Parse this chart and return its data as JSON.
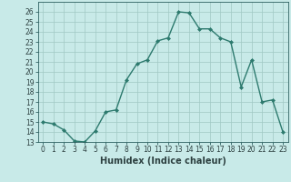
{
  "xlabel": "Humidex (Indice chaleur)",
  "ylabel": "",
  "x": [
    0,
    1,
    2,
    3,
    4,
    5,
    6,
    7,
    8,
    9,
    10,
    11,
    12,
    13,
    14,
    15,
    16,
    17,
    18,
    19,
    20,
    21,
    22,
    23
  ],
  "y": [
    15,
    14.8,
    14.2,
    13.1,
    13.0,
    14.1,
    16.0,
    16.2,
    19.2,
    20.8,
    21.2,
    23.1,
    23.4,
    26.0,
    25.9,
    24.3,
    24.3,
    23.4,
    23.0,
    18.5,
    21.2,
    17.0,
    17.2,
    14.0
  ],
  "line_color": "#2d7a6e",
  "bg_color": "#c8eae8",
  "grid_color": "#a0c8c4",
  "ylim": [
    13,
    27
  ],
  "xlim": [
    -0.5,
    23.5
  ],
  "yticks": [
    13,
    14,
    15,
    16,
    17,
    18,
    19,
    20,
    21,
    22,
    23,
    24,
    25,
    26
  ],
  "xticks": [
    0,
    1,
    2,
    3,
    4,
    5,
    6,
    7,
    8,
    9,
    10,
    11,
    12,
    13,
    14,
    15,
    16,
    17,
    18,
    19,
    20,
    21,
    22,
    23
  ],
  "marker": "D",
  "markersize": 2.0,
  "linewidth": 1.0,
  "tick_fontsize": 5.5,
  "xlabel_fontsize": 7.0,
  "tick_color": "#2d6060",
  "label_color": "#2d4040",
  "spine_color": "#2d6060"
}
